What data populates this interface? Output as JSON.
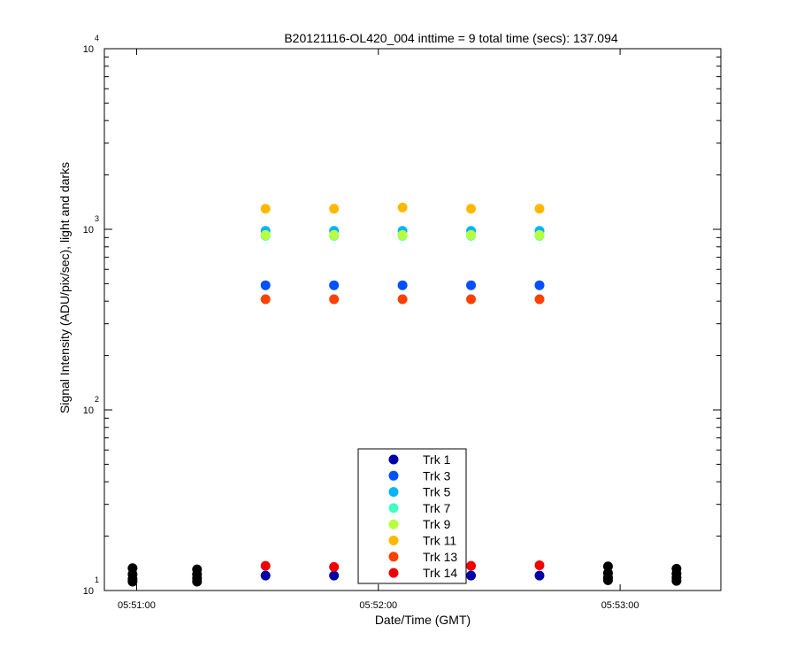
{
  "chart_data": {
    "type": "scatter",
    "title": "B20121116-OL420_004 inttime = 9 total time (secs): 137.094",
    "xlabel": "Date/Time (GMT)",
    "ylabel": "Signal Intensity (ADU/pix/sec), light and darks",
    "yscale": "log",
    "ylim": [
      10,
      10000
    ],
    "xlim": [
      "05:50:52",
      "05:53:25"
    ],
    "x_ticks": [
      "05:51:00",
      "05:52:00",
      "05:53:00"
    ],
    "y_ticks": [
      {
        "base": "10",
        "exp": "1"
      },
      {
        "base": "10",
        "exp": "2"
      },
      {
        "base": "10",
        "exp": "3"
      },
      {
        "base": "10",
        "exp": "4"
      }
    ],
    "legend_position": "bottom-center",
    "series": [
      {
        "name": "Trk 1",
        "color": "#0000a8",
        "x": [
          "05:51:32",
          "05:51:49",
          "05:52:23",
          "05:52:40"
        ],
        "y": [
          12.1,
          12.1,
          12.1,
          12.1
        ]
      },
      {
        "name": "Trk 3",
        "color": "#0050ff",
        "x": [
          "05:51:32",
          "05:51:49",
          "05:52:06",
          "05:52:23",
          "05:52:40"
        ],
        "y": [
          490,
          490,
          490,
          490,
          490
        ]
      },
      {
        "name": "Trk 5",
        "color": "#00b4ff",
        "x": [
          "05:51:32",
          "05:51:49",
          "05:52:06",
          "05:52:23",
          "05:52:40"
        ],
        "y": [
          980,
          980,
          980,
          980,
          980
        ]
      },
      {
        "name": "Trk 7",
        "color": "#40ffc0",
        "x": [
          "05:51:32",
          "05:51:49",
          "05:52:06",
          "05:52:23",
          "05:52:40"
        ],
        "y": [
          920,
          920,
          920,
          920,
          920
        ]
      },
      {
        "name": "Trk 9",
        "color": "#b8ff40",
        "x": [
          "05:51:32",
          "05:51:49",
          "05:52:06",
          "05:52:23",
          "05:52:40"
        ],
        "y": [
          930,
          930,
          930,
          930,
          930
        ]
      },
      {
        "name": "Trk 11",
        "color": "#ffb800",
        "x": [
          "05:51:32",
          "05:51:49",
          "05:52:06",
          "05:52:23",
          "05:52:40"
        ],
        "y": [
          1300,
          1300,
          1320,
          1300,
          1300
        ]
      },
      {
        "name": "Trk 13",
        "color": "#ff4000",
        "x": [
          "05:51:32",
          "05:51:49",
          "05:52:06",
          "05:52:23",
          "05:52:40"
        ],
        "y": [
          410,
          410,
          410,
          410,
          410
        ]
      },
      {
        "name": "Trk 14",
        "color": "#f00000",
        "x": [
          "05:51:32",
          "05:51:49",
          "05:52:23",
          "05:52:40"
        ],
        "y": [
          13.7,
          13.5,
          13.7,
          13.8
        ]
      }
    ],
    "dark_points": {
      "color": "#000000",
      "x": [
        "05:50:59",
        "05:50:59",
        "05:50:59",
        "05:50:59",
        "05:51:15",
        "05:51:15",
        "05:51:15",
        "05:51:15",
        "05:52:57",
        "05:52:57",
        "05:52:57",
        "05:52:57",
        "05:53:14",
        "05:53:14",
        "05:53:14",
        "05:53:14"
      ],
      "y": [
        13.3,
        12.3,
        11.6,
        11.2,
        13.1,
        12.3,
        11.7,
        11.2,
        13.6,
        12.5,
        11.8,
        11.4,
        13.2,
        12.4,
        11.8,
        11.3
      ]
    }
  }
}
